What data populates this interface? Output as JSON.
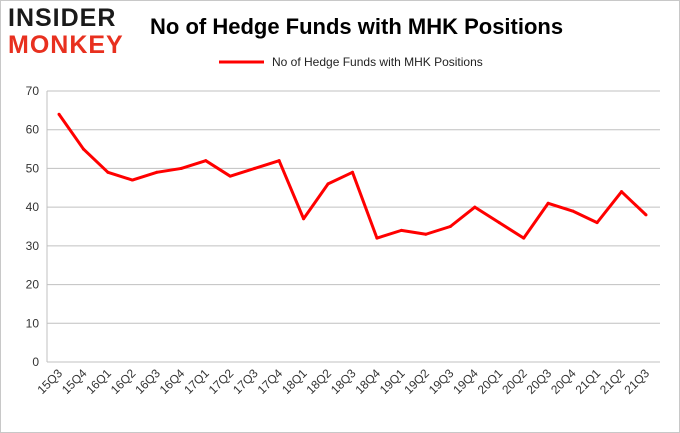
{
  "logo": {
    "line1": "INSIDER",
    "line2": "MONKEY"
  },
  "chart_data": {
    "type": "line",
    "title": "No of Hedge Funds with MHK Positions",
    "xlabel": "",
    "ylabel": "",
    "ylim": [
      0,
      70
    ],
    "yticks": [
      0,
      10,
      20,
      30,
      40,
      50,
      60,
      70
    ],
    "grid": true,
    "legend_position": "top-center",
    "categories": [
      "15Q3",
      "15Q4",
      "16Q1",
      "16Q2",
      "16Q3",
      "16Q4",
      "17Q1",
      "17Q2",
      "17Q3",
      "17Q4",
      "18Q1",
      "18Q2",
      "18Q3",
      "18Q4",
      "19Q1",
      "19Q2",
      "19Q3",
      "19Q4",
      "20Q1",
      "20Q2",
      "20Q3",
      "20Q4",
      "21Q1",
      "21Q2",
      "21Q3"
    ],
    "series": [
      {
        "name": "No of Hedge Funds with MHK Positions",
        "color": "#ff0000",
        "values": [
          64,
          55,
          49,
          47,
          49,
          50,
          52,
          48,
          50,
          52,
          37,
          46,
          49,
          32,
          34,
          33,
          35,
          40,
          36,
          32,
          41,
          39,
          36,
          44,
          38
        ]
      }
    ]
  }
}
